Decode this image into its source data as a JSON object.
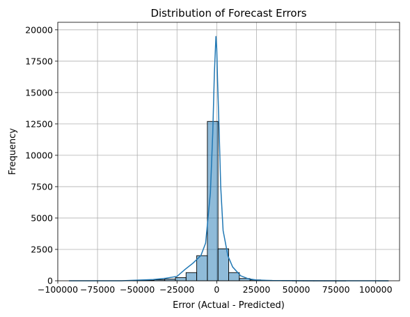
{
  "chart_data": {
    "type": "histogram",
    "title": "Distribution of Forecast Errors",
    "xlabel": "Error (Actual - Predicted)",
    "ylabel": "Frequency",
    "xlim": [
      -100000,
      115000
    ],
    "ylim": [
      0,
      20600
    ],
    "xticks": [
      -100000,
      -75000,
      -50000,
      -25000,
      0,
      25000,
      50000,
      75000,
      100000
    ],
    "xtick_labels": [
      "−100000",
      "−75000",
      "−50000",
      "−25000",
      "0",
      "25000",
      "50000",
      "75000",
      "100000"
    ],
    "yticks": [
      0,
      2500,
      5000,
      7500,
      10000,
      12500,
      15000,
      17500,
      20000
    ],
    "ytick_labels": [
      "0",
      "2500",
      "5000",
      "7500",
      "10000",
      "12500",
      "15000",
      "17500",
      "20000"
    ],
    "grid": true,
    "bins": [
      {
        "x0": -93000,
        "x1": -86300,
        "count": 0
      },
      {
        "x0": -86300,
        "x1": -79600,
        "count": 0
      },
      {
        "x0": -79600,
        "x1": -72900,
        "count": 0
      },
      {
        "x0": -72900,
        "x1": -66200,
        "count": 0
      },
      {
        "x0": -66200,
        "x1": -59500,
        "count": 0
      },
      {
        "x0": -59500,
        "x1": -52800,
        "count": 0
      },
      {
        "x0": -52800,
        "x1": -46100,
        "count": 20
      },
      {
        "x0": -46100,
        "x1": -39400,
        "count": 40
      },
      {
        "x0": -39400,
        "x1": -32700,
        "count": 80
      },
      {
        "x0": -32700,
        "x1": -26000,
        "count": 130
      },
      {
        "x0": -26000,
        "x1": -19300,
        "count": 250
      },
      {
        "x0": -19300,
        "x1": -12600,
        "count": 650
      },
      {
        "x0": -12600,
        "x1": -5900,
        "count": 2000
      },
      {
        "x0": -5900,
        "x1": 800,
        "count": 12700
      },
      {
        "x0": 800,
        "x1": 7500,
        "count": 2550
      },
      {
        "x0": 7500,
        "x1": 14200,
        "count": 650
      },
      {
        "x0": 14200,
        "x1": 20900,
        "count": 180
      },
      {
        "x0": 20900,
        "x1": 27600,
        "count": 70
      },
      {
        "x0": 27600,
        "x1": 34300,
        "count": 30
      },
      {
        "x0": 34300,
        "x1": 41000,
        "count": 15
      },
      {
        "x0": 41000,
        "x1": 47700,
        "count": 10
      },
      {
        "x0": 47700,
        "x1": 54400,
        "count": 5
      },
      {
        "x0": 54400,
        "x1": 61100,
        "count": 3
      },
      {
        "x0": 61100,
        "x1": 67800,
        "count": 2
      },
      {
        "x0": 67800,
        "x1": 74500,
        "count": 1
      },
      {
        "x0": 74500,
        "x1": 81200,
        "count": 1
      },
      {
        "x0": 81200,
        "x1": 87900,
        "count": 0
      },
      {
        "x0": 87900,
        "x1": 94600,
        "count": 0
      },
      {
        "x0": 94600,
        "x1": 101300,
        "count": 0
      },
      {
        "x0": 101300,
        "x1": 108000,
        "count": 1
      }
    ],
    "kde": {
      "x": [
        -93000,
        -60000,
        -50000,
        -40000,
        -32000,
        -25000,
        -20000,
        -15000,
        -10000,
        -7000,
        -4000,
        -2500,
        -1500,
        -500,
        0,
        500,
        1500,
        2500,
        4000,
        7000,
        10000,
        15000,
        20000,
        25000,
        35000,
        50000,
        75000,
        108000
      ],
      "y": [
        0,
        0,
        50,
        100,
        200,
        350,
        900,
        1400,
        2000,
        3000,
        7000,
        11800,
        16500,
        19500,
        18500,
        16000,
        12000,
        7500,
        4000,
        2000,
        1100,
        400,
        150,
        60,
        20,
        5,
        0,
        0
      ]
    },
    "colors": {
      "bar_fill": "#1f77b4",
      "bar_fill_opacity": 0.5,
      "bar_edge": "#000000",
      "kde_line": "#1f77b4",
      "grid": "#b0b0b0"
    }
  }
}
